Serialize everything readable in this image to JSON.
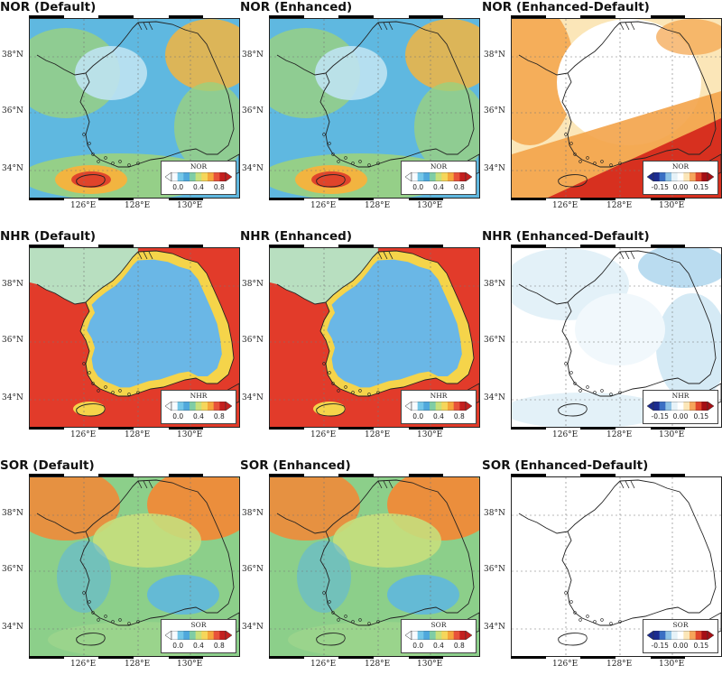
{
  "panels": [
    {
      "title": "NOR (Default)",
      "cb_label": "NOR",
      "scale": "seq",
      "field": "nor_default"
    },
    {
      "title": "NOR (Enhanced)",
      "cb_label": "NOR",
      "scale": "seq",
      "field": "nor_enhanced"
    },
    {
      "title": "NOR (Enhanced-Default)",
      "cb_label": "NOR",
      "scale": "div",
      "field": "nor_diff"
    },
    {
      "title": "NHR (Default)",
      "cb_label": "NHR",
      "scale": "seq",
      "field": "nhr_default"
    },
    {
      "title": "NHR (Enhanced)",
      "cb_label": "NHR",
      "scale": "seq",
      "field": "nhr_enhanced"
    },
    {
      "title": "NHR (Enhanced-Default)",
      "cb_label": "NHR",
      "scale": "div",
      "field": "nhr_diff"
    },
    {
      "title": "SOR (Default)",
      "cb_label": "SOR",
      "scale": "seq",
      "field": "sor_default"
    },
    {
      "title": "SOR (Enhanced)",
      "cb_label": "SOR",
      "scale": "seq",
      "field": "sor_enhanced"
    },
    {
      "title": "SOR (Enhanced-Default)",
      "cb_label": "SOR",
      "scale": "div",
      "field": "sor_diff"
    }
  ],
  "axes": {
    "lat_labels": [
      "38°N",
      "36°N",
      "34°N"
    ],
    "lon_labels": [
      "126°E",
      "128°E",
      "130°E"
    ]
  },
  "colorbars": {
    "seq": {
      "ticks": [
        "0.0",
        "0.4",
        "0.8"
      ],
      "colors": [
        "#f7fbff",
        "#74c7e8",
        "#4fa8dc",
        "#7fcda6",
        "#c9e07a",
        "#f6d65a",
        "#f6a53c",
        "#e8523a",
        "#c41f1f"
      ]
    },
    "div": {
      "ticks": [
        "-0.15",
        "0.00",
        "0.15"
      ],
      "colors": [
        "#1b2b8f",
        "#3a6fc4",
        "#8fc3e6",
        "#e6f2f8",
        "#ffffff",
        "#fbe6b8",
        "#f6a55a",
        "#e0442b",
        "#a50f15"
      ]
    }
  },
  "colors": {
    "nor_base": "#5fb8e0",
    "nor_mid": "#9bd17e",
    "nor_high": "#f2b440",
    "nhr_sea": "#e23b2a",
    "nhr_land": "#6ab7e6",
    "nhr_coast": "#f5d44a",
    "sor_base": "#8ccf8a",
    "sor_high": "#f08a38",
    "sor_low": "#5db6e2",
    "diff_pos": "#f3a349",
    "diff_hot": "#d7301f",
    "diff_neg": "#a9d3ec",
    "white": "#ffffff"
  }
}
